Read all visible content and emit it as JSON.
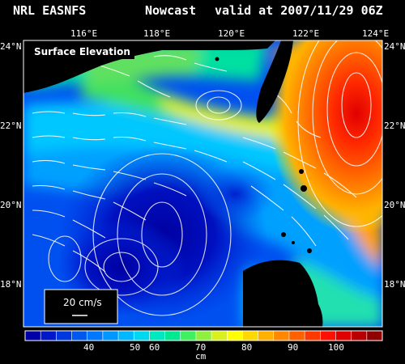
{
  "header": {
    "model": "NRL EASNFS",
    "product": "Nowcast",
    "valid": "valid at 2007/11/29 06Z"
  },
  "map": {
    "field_label": "Surface Elevation",
    "lon_ticks": [
      "116°E",
      "118°E",
      "120°E",
      "122°E",
      "124°E"
    ],
    "lat_ticks": [
      "24°N",
      "22°N",
      "20°N",
      "18°N"
    ],
    "legend_speed": "20 cm/s"
  },
  "colorbar": {
    "tick_labels": [
      "40",
      "50",
      "60",
      "70",
      "80",
      "90",
      "100"
    ],
    "unit": "cm",
    "colors": [
      "#0000a8",
      "#0018c8",
      "#0038e0",
      "#0058f0",
      "#0078ff",
      "#0098ff",
      "#00b8ff",
      "#00d8f0",
      "#00e8c0",
      "#00e890",
      "#40f060",
      "#90f040",
      "#d8f020",
      "#ffff00",
      "#ffd800",
      "#ffb000",
      "#ff8800",
      "#ff6000",
      "#ff3800",
      "#ff1000",
      "#e00000",
      "#b80000",
      "#900000"
    ]
  }
}
